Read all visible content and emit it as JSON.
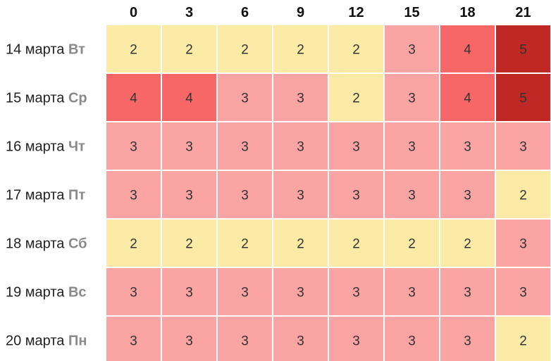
{
  "chart_data": {
    "type": "heatmap",
    "columns": [
      "0",
      "3",
      "6",
      "9",
      "12",
      "15",
      "18",
      "21"
    ],
    "rows": [
      {
        "date": "14 марта",
        "day": "Вт"
      },
      {
        "date": "15 марта",
        "day": "Ср"
      },
      {
        "date": "16 марта",
        "day": "Чт"
      },
      {
        "date": "17 марта",
        "day": "Пт"
      },
      {
        "date": "18 марта",
        "day": "Сб"
      },
      {
        "date": "19 марта",
        "day": "Вс"
      },
      {
        "date": "20 марта",
        "day": "Пн"
      }
    ],
    "values": [
      [
        2,
        2,
        2,
        2,
        2,
        3,
        4,
        5
      ],
      [
        4,
        4,
        3,
        3,
        2,
        3,
        4,
        5
      ],
      [
        3,
        3,
        3,
        3,
        3,
        3,
        3,
        3
      ],
      [
        3,
        3,
        3,
        3,
        3,
        3,
        3,
        2
      ],
      [
        2,
        2,
        2,
        2,
        2,
        2,
        2,
        3
      ],
      [
        3,
        3,
        3,
        3,
        3,
        3,
        3,
        3
      ],
      [
        3,
        3,
        3,
        3,
        3,
        3,
        3,
        2
      ]
    ],
    "color_scale": {
      "2": "#fbeba7",
      "3": "#faa4a4",
      "4": "#f86767",
      "5": "#c02826"
    }
  }
}
